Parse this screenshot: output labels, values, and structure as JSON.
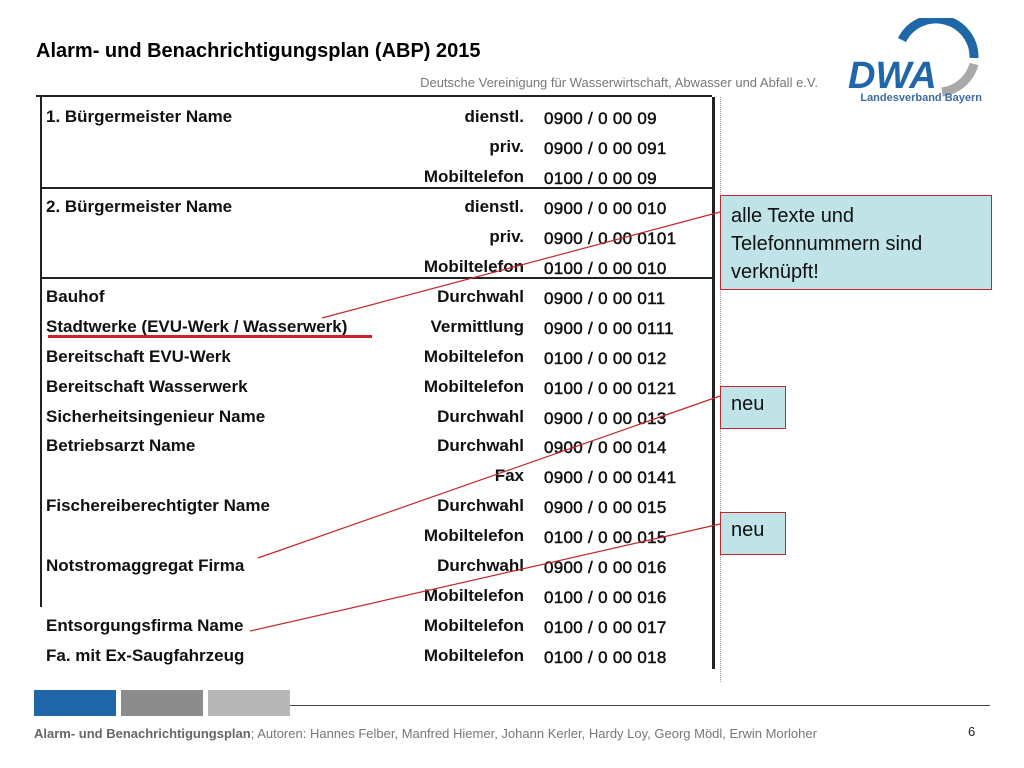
{
  "header": {
    "title": "Alarm- und Benachrichtigungsplan (ABP) 2015",
    "subtitle": "Deutsche Vereinigung für Wasserwirtschaft, Abwasser und Abfall e.V.",
    "logo_text": "DWA",
    "logo_subtext": "Landesverband Bayern"
  },
  "table": {
    "rows": [
      {
        "name": "1. Bürgermeister Name",
        "type": "dienstl.",
        "number": "0900 / 0 00 09"
      },
      {
        "name": "",
        "type": "priv.",
        "number": "0900 / 0 00 091"
      },
      {
        "name": "",
        "type": "Mobiltelefon",
        "number": "0100 / 0 00 09"
      },
      {
        "name": "2. Bürgermeister Name",
        "type": "dienstl.",
        "number": "0900 / 0 00 010"
      },
      {
        "name": "",
        "type": "priv.",
        "number": "0900 / 0 00 0101"
      },
      {
        "name": "",
        "type": "Mobiltelefon",
        "number": "0100 / 0 00 010"
      },
      {
        "name": "Bauhof",
        "type": "Durchwahl",
        "number": "0900 / 0 00 011"
      },
      {
        "name": "Stadtwerke (EVU-Werk / Wasserwerk)",
        "type": "Vermittlung",
        "number": "0900 / 0 00 0111"
      },
      {
        "name": "Bereitschaft EVU-Werk",
        "type": "Mobiltelefon",
        "number": "0100 / 0 00 012"
      },
      {
        "name": "Bereitschaft Wasserwerk",
        "type": "Mobiltelefon",
        "number": "0100 / 0 00 0121"
      },
      {
        "name": "Sicherheitsingenieur Name",
        "type": "Durchwahl",
        "number": "0900 / 0 00 013"
      },
      {
        "name": "Betriebsarzt Name",
        "type": "Durchwahl",
        "number": "0900 / 0 00 014"
      },
      {
        "name": "",
        "type": "Fax",
        "number": "0900 / 0 00 0141"
      },
      {
        "name": "Fischereiberechtigter Name",
        "type": "Durchwahl",
        "number": "0900 / 0 00 015"
      },
      {
        "name": "",
        "type": "Mobiltelefon",
        "number": "0100 / 0 00 015"
      },
      {
        "name": "Notstromaggregat Firma",
        "type": "Durchwahl",
        "number": "0900 / 0 00 016"
      },
      {
        "name": "",
        "type": "Mobiltelefon",
        "number": "0100 / 0 00 016"
      },
      {
        "name": "Entsorgungsfirma Name",
        "type": "Mobiltelefon",
        "number": "0100 / 0 00 017"
      },
      {
        "name": "Fa. mit Ex-Saugfahrzeug",
        "type": "Mobiltelefon",
        "number": "0100 / 0 00 018"
      }
    ]
  },
  "callouts": {
    "main": "alle Texte und Telefonnummern sind verknüpft!",
    "neu1": "neu",
    "neu2": "neu"
  },
  "footer": {
    "title": "Alarm- und Benachrichtigungsplan",
    "authors": "; Autoren: Hannes Felber, Manfred Hiemer, Johann Kerler, Hardy Loy, Georg Mödl, Erwin Morloher",
    "page_number": "6"
  },
  "colors": {
    "accent_blue": "#1f67a8",
    "callout_fill": "#bfe3e6",
    "callout_border": "#c0282d",
    "underline_red": "#d0202a"
  }
}
